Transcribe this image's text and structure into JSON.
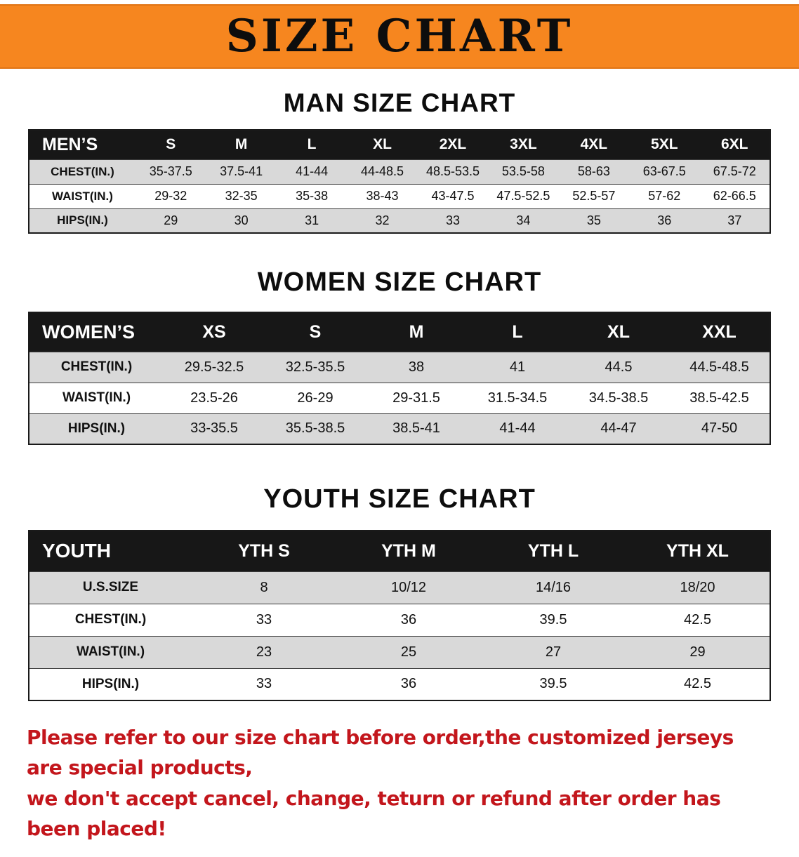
{
  "banner": {
    "title": "SIZE CHART",
    "bg_color": "#f6861f",
    "text_color": "#0d0d0d"
  },
  "colors": {
    "table_header_bg": "#171717",
    "table_header_text": "#ffffff",
    "row_shaded": "#d9d9d9",
    "row_plain": "#ffffff",
    "disclaimer_text": "#c3161c"
  },
  "sections": [
    {
      "name": "men-size-chart",
      "heading": "MAN SIZE CHART",
      "table": {
        "header": [
          "MEN’S",
          "S",
          "M",
          "L",
          "XL",
          "2XL",
          "3XL",
          "4XL",
          "5XL",
          "6XL"
        ],
        "rows": [
          {
            "label": "CHEST(IN.)",
            "values": [
              "35-37.5",
              "37.5-41",
              "41-44",
              "44-48.5",
              "48.5-53.5",
              "53.5-58",
              "58-63",
              "63-67.5",
              "67.5-72"
            ]
          },
          {
            "label": "WAIST(IN.)",
            "values": [
              "29-32",
              "32-35",
              "35-38",
              "38-43",
              "43-47.5",
              "47.5-52.5",
              "52.5-57",
              "57-62",
              "62-66.5"
            ]
          },
          {
            "label": "HIPS(IN.)",
            "values": [
              "29",
              "30",
              "31",
              "32",
              "33",
              "34",
              "35",
              "36",
              "37"
            ]
          }
        ]
      }
    },
    {
      "name": "women-size-chart",
      "heading": "WOMEN SIZE CHART",
      "table": {
        "header": [
          "WOMEN’S",
          "XS",
          "S",
          "M",
          "L",
          "XL",
          "XXL"
        ],
        "rows": [
          {
            "label": "CHEST(IN.)",
            "values": [
              "29.5-32.5",
              "32.5-35.5",
              "38",
              "41",
              "44.5",
              "44.5-48.5"
            ]
          },
          {
            "label": "WAIST(IN.)",
            "values": [
              "23.5-26",
              "26-29",
              "29-31.5",
              "31.5-34.5",
              "34.5-38.5",
              "38.5-42.5"
            ]
          },
          {
            "label": "HIPS(IN.)",
            "values": [
              "33-35.5",
              "35.5-38.5",
              "38.5-41",
              "41-44",
              "44-47",
              "47-50"
            ]
          }
        ]
      }
    },
    {
      "name": "youth-size-chart",
      "heading": "YOUTH SIZE CHART",
      "table": {
        "header": [
          "YOUTH",
          "YTH S",
          "YTH M",
          "YTH L",
          "YTH XL"
        ],
        "rows": [
          {
            "label": "U.S.SIZE",
            "values": [
              "8",
              "10/12",
              "14/16",
              "18/20"
            ]
          },
          {
            "label": "CHEST(IN.)",
            "values": [
              "33",
              "36",
              "39.5",
              "42.5"
            ]
          },
          {
            "label": "WAIST(IN.)",
            "values": [
              "23",
              "25",
              "27",
              "29"
            ]
          },
          {
            "label": "HIPS(IN.)",
            "values": [
              "33",
              "36",
              "39.5",
              "42.5"
            ]
          }
        ]
      }
    }
  ],
  "disclaimer": {
    "lines": [
      "Please refer to our size chart before order,the customized jerseys are special products,",
      "we don't accept cancel, change, teturn or refund after order has been placed!"
    ]
  }
}
